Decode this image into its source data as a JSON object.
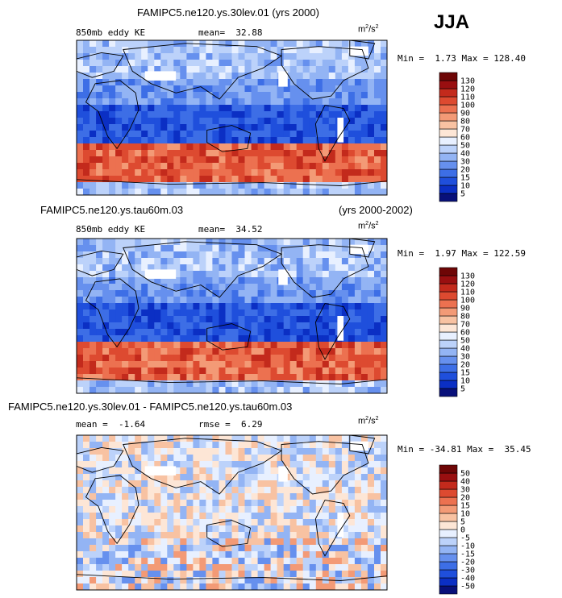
{
  "season": "JJA",
  "chart_data": [
    {
      "type": "heatmap",
      "title": "FAMIPC5.ne120.ys.30lev.01 (yrs 2000)",
      "title_right": "",
      "field": "850mb eddy KE",
      "stat1_label": "mean=",
      "stat1_value": "32.88",
      "stat2_label": "",
      "stat2_value": "",
      "units_base": "m",
      "units_exp1": "2",
      "units_mid": "/s",
      "units_exp2": "2",
      "min_label": "Min =",
      "min_value": "1.73",
      "max_label": "Max =",
      "max_value": "128.40",
      "colorbar_levels": [
        "5",
        "10",
        "15",
        "20",
        "30",
        "40",
        "50",
        "60",
        "70",
        "80",
        "90",
        "100",
        "110",
        "120",
        "130"
      ],
      "colorbar_colors": [
        "#08107a",
        "#0b2fc4",
        "#1f4fdc",
        "#3d6ee6",
        "#6690ee",
        "#93b4f4",
        "#bcd2fa",
        "#e8f0ff",
        "#fde6d6",
        "#f8c2a2",
        "#f39a76",
        "#ec7150",
        "#dd4a30",
        "#c32a1c",
        "#990f10",
        "#6e0606"
      ]
    },
    {
      "type": "heatmap",
      "title": "FAMIPC5.ne120.ys.tau60m.03",
      "title_right": "(yrs 2000-2002)",
      "field": "850mb eddy KE",
      "stat1_label": "mean=",
      "stat1_value": "34.52",
      "stat2_label": "",
      "stat2_value": "",
      "units_base": "m",
      "units_exp1": "2",
      "units_mid": "/s",
      "units_exp2": "2",
      "min_label": "Min =",
      "min_value": "1.97",
      "max_label": "Max =",
      "max_value": "122.59",
      "colorbar_levels": [
        "5",
        "10",
        "15",
        "20",
        "30",
        "40",
        "50",
        "60",
        "70",
        "80",
        "90",
        "100",
        "110",
        "120",
        "130"
      ],
      "colorbar_colors": [
        "#08107a",
        "#0b2fc4",
        "#1f4fdc",
        "#3d6ee6",
        "#6690ee",
        "#93b4f4",
        "#bcd2fa",
        "#e8f0ff",
        "#fde6d6",
        "#f8c2a2",
        "#f39a76",
        "#ec7150",
        "#dd4a30",
        "#c32a1c",
        "#990f10",
        "#6e0606"
      ]
    },
    {
      "type": "heatmap",
      "title": "FAMIPC5.ne120.ys.30lev.01 - FAMIPC5.ne120.ys.tau60m.03",
      "title_right": "",
      "field": "",
      "stat1_label": "mean =",
      "stat1_value": "-1.64",
      "stat2_label": "rmse =",
      "stat2_value": "6.29",
      "units_base": "m",
      "units_exp1": "2",
      "units_mid": "/s",
      "units_exp2": "2",
      "min_label": "Min =",
      "min_value": "-34.81",
      "max_label": "Max =",
      "max_value": "35.45",
      "colorbar_levels": [
        "-50",
        "-40",
        "-30",
        "-20",
        "-15",
        "-10",
        "-5",
        "0",
        "5",
        "10",
        "15",
        "20",
        "30",
        "40",
        "50"
      ],
      "colorbar_colors": [
        "#08107a",
        "#0b2fc4",
        "#1f4fdc",
        "#3d6ee6",
        "#6690ee",
        "#93b4f4",
        "#bcd2fa",
        "#e8f0ff",
        "#fde6d6",
        "#f8c2a2",
        "#f39a76",
        "#ec7150",
        "#dd4a30",
        "#c32a1c",
        "#990f10",
        "#6e0606"
      ]
    }
  ]
}
